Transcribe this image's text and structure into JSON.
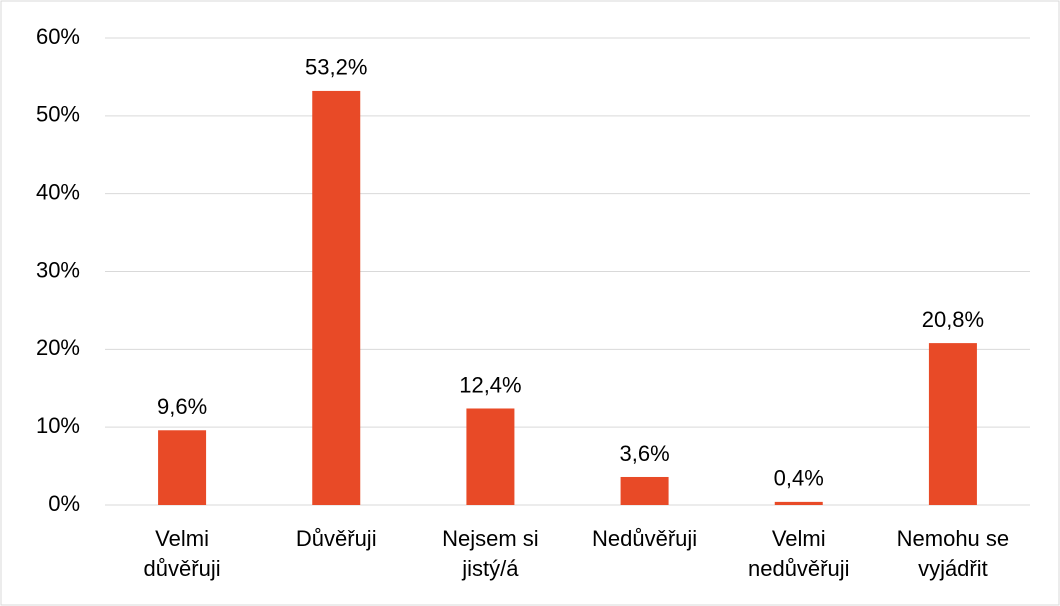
{
  "chart_data": {
    "type": "bar",
    "categories": [
      "Velmi důvěřuji",
      "Důvěřuji",
      "Nejsem si jistý/á",
      "Nedůvěřuji",
      "Velmi nedůvěřuji",
      "Nemohu se vyjádřit"
    ],
    "values": [
      9.6,
      53.2,
      12.4,
      3.6,
      0.4,
      20.8
    ],
    "value_labels": [
      "9,6%",
      "53,2%",
      "12,4%",
      "3,6%",
      "0,4%",
      "20,8%"
    ],
    "color": "#e84a27",
    "ylim": [
      0,
      60
    ],
    "yticks": [
      {
        "value": 0,
        "label": "0%"
      },
      {
        "value": 10,
        "label": "10%"
      },
      {
        "value": 20,
        "label": "20%"
      },
      {
        "value": 30,
        "label": "30%"
      },
      {
        "value": 40,
        "label": "40%"
      },
      {
        "value": 50,
        "label": "50%"
      },
      {
        "value": 60,
        "label": "60%"
      }
    ],
    "grid": true
  }
}
